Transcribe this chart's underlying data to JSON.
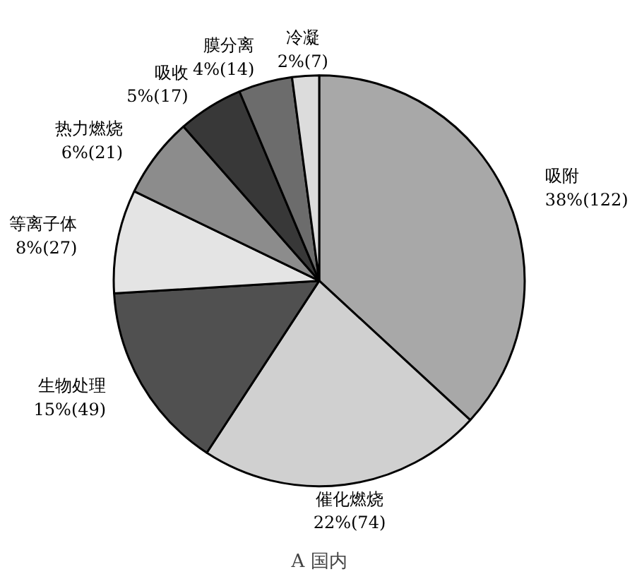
{
  "chart_data": {
    "type": "pie",
    "title": "A 国内",
    "categories": [
      "吸附",
      "催化燃烧",
      "生物处理",
      "等离子体",
      "热力燃烧",
      "吸收",
      "膜分离",
      "冷凝"
    ],
    "values": [
      122,
      74,
      49,
      27,
      21,
      17,
      14,
      7
    ],
    "value_labels": [
      "38%(122)",
      "22%(74)",
      "15%(49)",
      "8%(27)",
      "6%(21)",
      "5%(17)",
      "4%(14)",
      "2%(7)"
    ],
    "colors": [
      "#a8a8a8",
      "#d0d0d0",
      "#505050",
      "#e4e4e4",
      "#8c8c8c",
      "#383838",
      "#6c6c6c",
      "#dcdcdc"
    ]
  }
}
